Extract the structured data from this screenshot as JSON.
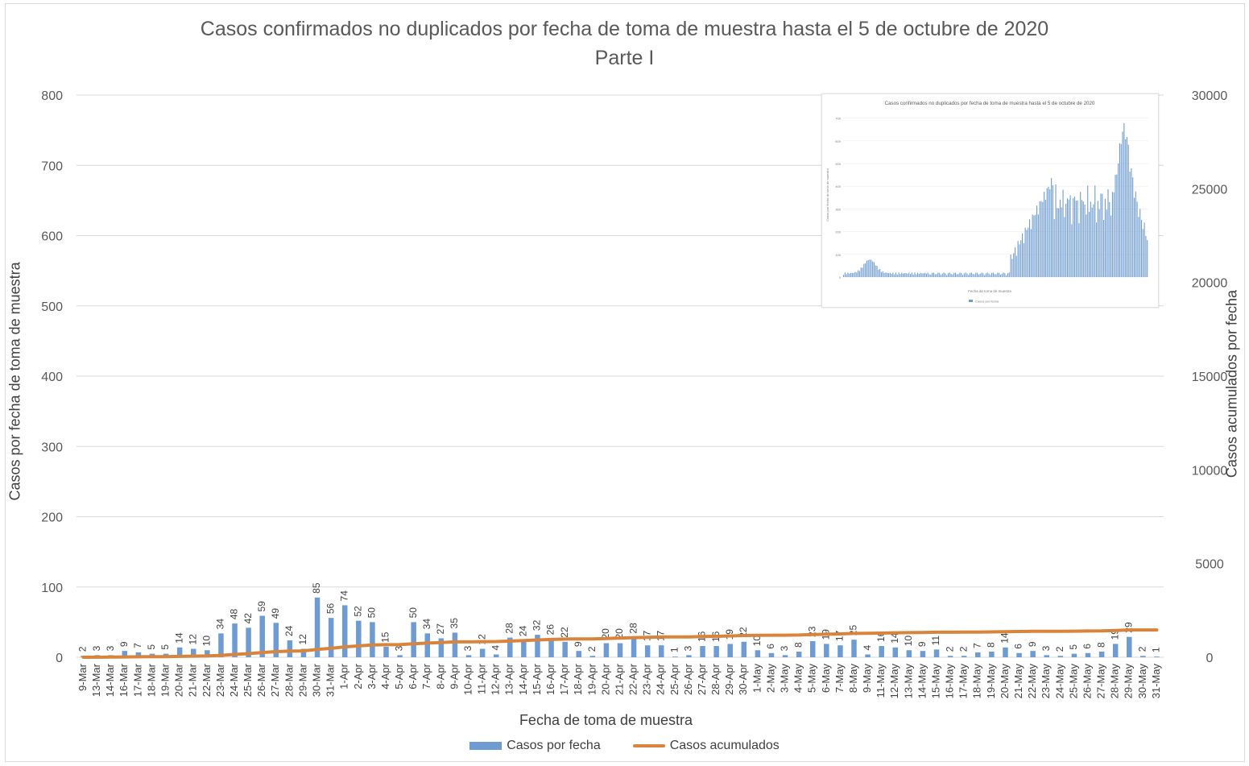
{
  "chart_data": {
    "type": "bar",
    "title": "Casos confirmados no duplicados por fecha de toma de muestra hasta el 5 de octubre de 2020",
    "subtitle": "Parte I",
    "xlabel": "Fecha de toma de muestra",
    "ylabel": "Casos por fecha de toma de muestra",
    "y2label": "Casos acumulados por fecha",
    "ylim": [
      0,
      800
    ],
    "y2lim": [
      0,
      30000
    ],
    "yticks": [
      "0",
      "100",
      "200",
      "300",
      "400",
      "500",
      "600",
      "700",
      "800"
    ],
    "y2ticks": [
      "0",
      "5000",
      "10000",
      "15000",
      "20000",
      "25000",
      "30000"
    ],
    "grid": true,
    "legend_position": "bottom",
    "categories": [
      "9-Mar",
      "13-Mar",
      "14-Mar",
      "16-Mar",
      "17-Mar",
      "18-Mar",
      "19-Mar",
      "20-Mar",
      "21-Mar",
      "22-Mar",
      "23-Mar",
      "24-Mar",
      "25-Mar",
      "26-Mar",
      "27-Mar",
      "28-Mar",
      "29-Mar",
      "30-Mar",
      "31-Mar",
      "1-Apr",
      "2-Apr",
      "3-Apr",
      "4-Apr",
      "5-Apr",
      "6-Apr",
      "7-Apr",
      "8-Apr",
      "9-Apr",
      "10-Apr",
      "11-Apr",
      "12-Apr",
      "13-Apr",
      "14-Apr",
      "15-Apr",
      "16-Apr",
      "17-Apr",
      "18-Apr",
      "19-Apr",
      "20-Apr",
      "21-Apr",
      "22-Apr",
      "23-Apr",
      "24-Apr",
      "25-Apr",
      "26-Apr",
      "27-Apr",
      "28-Apr",
      "29-Apr",
      "30-Apr",
      "1-May",
      "2-May",
      "3-May",
      "4-May",
      "5-May",
      "6-May",
      "7-May",
      "8-May",
      "9-May",
      "11-May",
      "12-May",
      "13-May",
      "14-May",
      "15-May",
      "16-May",
      "17-May",
      "18-May",
      "19-May",
      "20-May",
      "21-May",
      "22-May",
      "23-May",
      "24-May",
      "25-May",
      "26-May",
      "27-May",
      "28-May",
      "29-May",
      "30-May",
      "31-May"
    ],
    "series": [
      {
        "name": "Casos por fecha",
        "type": "bar",
        "axis": "left",
        "color": "#6e9bd2",
        "values": [
          2,
          3,
          3,
          9,
          7,
          5,
          5,
          14,
          12,
          10,
          34,
          48,
          42,
          59,
          49,
          24,
          12,
          85,
          56,
          74,
          52,
          50,
          15,
          3,
          50,
          34,
          27,
          35,
          3,
          12,
          4,
          28,
          24,
          32,
          26,
          22,
          9,
          2,
          20,
          20,
          28,
          17,
          17,
          1,
          3,
          16,
          16,
          19,
          22,
          10,
          6,
          3,
          8,
          23,
          19,
          17,
          25,
          4,
          16,
          14,
          10,
          9,
          11,
          2,
          2,
          7,
          8,
          14,
          6,
          9,
          3,
          2,
          5,
          6,
          8,
          19,
          29,
          2,
          1
        ]
      },
      {
        "name": "Casos acumulados",
        "type": "line",
        "axis": "right",
        "color": "#d9843d",
        "values": [
          2,
          5,
          8,
          17,
          24,
          29,
          34,
          48,
          60,
          70,
          104,
          152,
          194,
          253,
          302,
          326,
          338,
          423,
          479,
          553,
          605,
          655,
          670,
          673,
          723,
          757,
          784,
          819,
          822,
          834,
          838,
          866,
          890,
          922,
          948,
          970,
          979,
          981,
          1001,
          1021,
          1049,
          1066,
          1083,
          1084,
          1087,
          1103,
          1119,
          1138,
          1160,
          1170,
          1176,
          1179,
          1187,
          1210,
          1229,
          1246,
          1271,
          1275,
          1291,
          1305,
          1315,
          1324,
          1335,
          1337,
          1339,
          1346,
          1354,
          1368,
          1374,
          1383,
          1386,
          1388,
          1393,
          1399,
          1407,
          1426,
          1455,
          1457,
          1458
        ]
      }
    ]
  },
  "inset": {
    "title": "Casos confirmados no duplicados por fecha de toma de muestra hasta el 5 de octubre de 2020",
    "ylabel": "Casos por fecha de toma de muestra",
    "xlabel": "Fecha de toma de muestra",
    "legend": "Casos por fecha",
    "yticks": [
      "0",
      "100",
      "200",
      "300",
      "400",
      "500",
      "600",
      "700"
    ],
    "bar_color": "#6e9bd2"
  }
}
